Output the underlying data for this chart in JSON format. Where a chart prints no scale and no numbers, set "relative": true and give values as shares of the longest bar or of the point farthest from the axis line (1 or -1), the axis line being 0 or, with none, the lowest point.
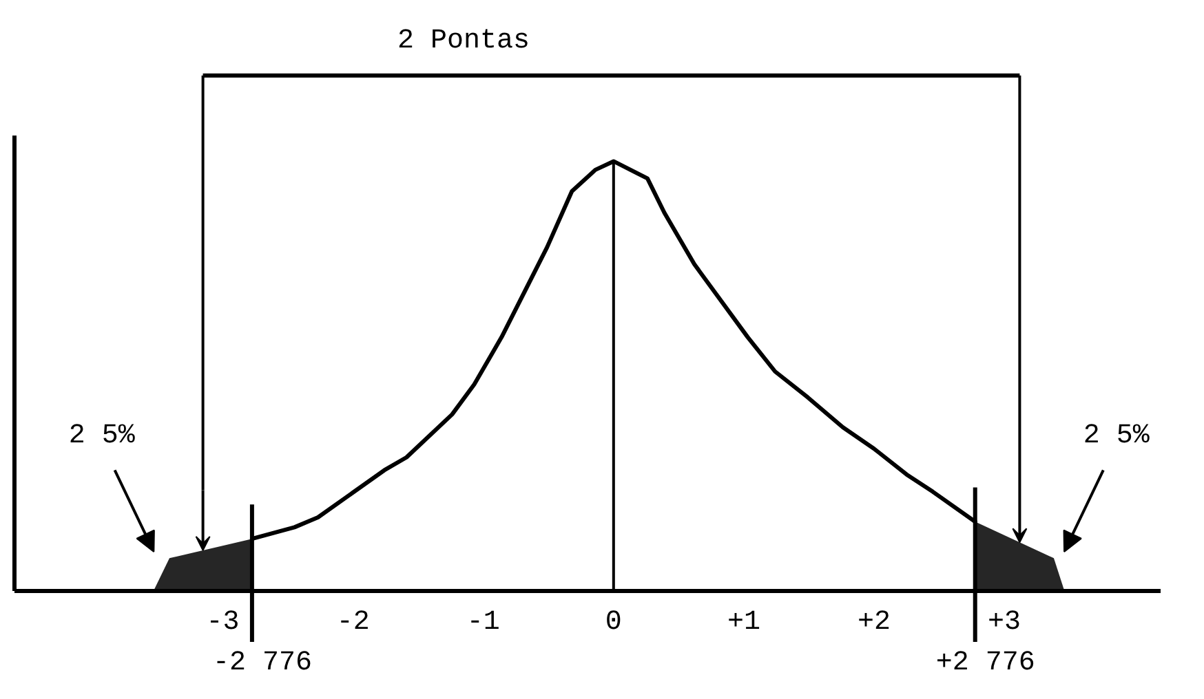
{
  "chart_data": {
    "type": "line",
    "title": "2 Pontas",
    "relative": true,
    "grid": false,
    "tick_labels": "x",
    "xlim": [
      -4.6,
      4.2
    ],
    "xticks": [
      -3,
      -2,
      -1,
      0,
      {
        "value": 1,
        "label": "+1"
      },
      {
        "value": 2,
        "label": "+2"
      },
      {
        "value": 3,
        "label": "+3"
      }
    ],
    "series": [
      {
        "color": "#000000",
        "x": [
          -2.776,
          -2.45,
          -2.27,
          -1.76,
          -1.59,
          -1.24,
          -1.07,
          -0.86,
          -0.51,
          -0.32,
          -0.14,
          0,
          0.26,
          0.39,
          0.62,
          1.03,
          1.24,
          1.49,
          1.76,
          2.0,
          2.25,
          2.45,
          2.776
        ],
        "values": [
          0.12,
          0.147,
          0.17,
          0.28,
          0.31,
          0.41,
          0.48,
          0.59,
          0.8,
          0.93,
          0.98,
          1,
          0.96,
          0.88,
          0.76,
          0.59,
          0.51,
          0.45,
          0.38,
          0.33,
          0.27,
          0.23,
          0.16
        ]
      },
      {
        "type": "area",
        "color": "#262626",
        "x": [
          -3.53,
          -3.41,
          -2.776
        ],
        "values": [
          0,
          0.075,
          0.12
        ]
      },
      {
        "type": "area",
        "color": "#262626",
        "x": [
          2.776,
          3.38,
          3.46
        ],
        "values": [
          0.16,
          0.075,
          0
        ]
      }
    ],
    "ref_lines": [
      {
        "axis": "x",
        "value": -2.776,
        "label": "-2 776"
      },
      {
        "axis": "x",
        "value": 2.776,
        "label": "+2 776"
      },
      {
        "axis": "x",
        "value": 0
      }
    ],
    "annotations": [
      "2 5%",
      "2 5%"
    ]
  }
}
